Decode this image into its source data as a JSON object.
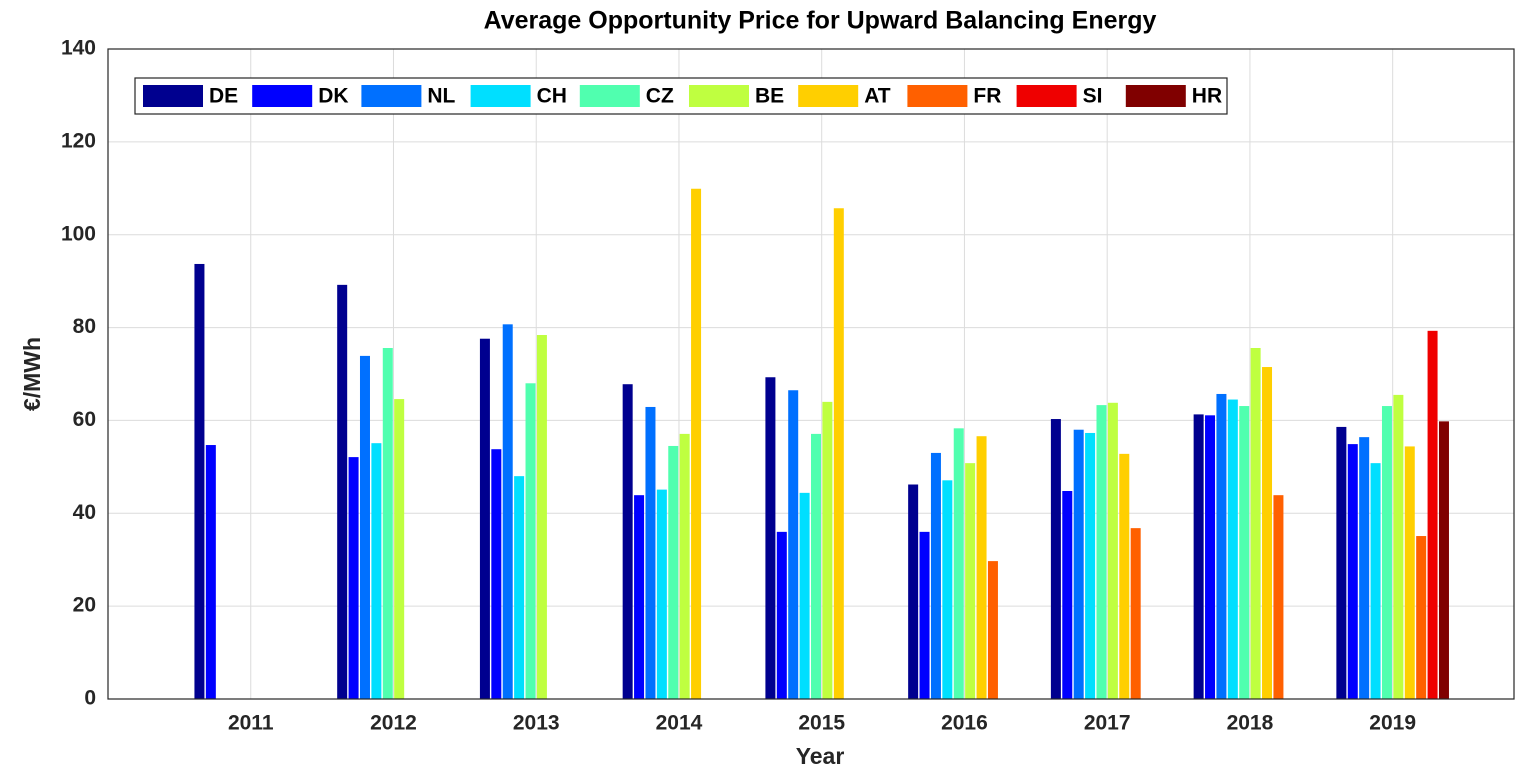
{
  "chart_data": {
    "type": "bar",
    "title": "Average Opportunity Price for Upward Balancing Energy",
    "x_label": "Year",
    "y_label": "€/MWh",
    "categories": [
      "2011",
      "2012",
      "2013",
      "2014",
      "2015",
      "2016",
      "2017",
      "2018",
      "2019"
    ],
    "series": [
      {
        "name": "DE",
        "color": "#00008f",
        "values": [
          93.7,
          89.2,
          77.6,
          67.8,
          69.3,
          46.2,
          60.3,
          61.3,
          58.6
        ]
      },
      {
        "name": "DK",
        "color": "#0000ff",
        "values": [
          54.7,
          52.1,
          53.8,
          43.9,
          36.0,
          36.0,
          44.8,
          61.1,
          54.9
        ]
      },
      {
        "name": "NL",
        "color": "#0070ff",
        "values": [
          null,
          73.9,
          80.7,
          62.9,
          66.5,
          53.0,
          58.0,
          65.7,
          56.4
        ]
      },
      {
        "name": "CH",
        "color": "#00dfff",
        "values": [
          null,
          55.1,
          48.0,
          45.1,
          44.4,
          47.1,
          57.3,
          64.5,
          50.8
        ]
      },
      {
        "name": "CZ",
        "color": "#50ffaf",
        "values": [
          null,
          75.6,
          68.0,
          54.5,
          57.1,
          58.3,
          63.3,
          63.1,
          63.1
        ]
      },
      {
        "name": "BE",
        "color": "#bfff40",
        "values": [
          null,
          64.6,
          78.4,
          57.1,
          64.0,
          50.8,
          63.8,
          75.6,
          65.5
        ]
      },
      {
        "name": "AT",
        "color": "#ffcf00",
        "values": [
          null,
          null,
          null,
          109.9,
          105.7,
          56.6,
          52.8,
          71.5,
          54.4
        ]
      },
      {
        "name": "FR",
        "color": "#ff6000",
        "values": [
          null,
          null,
          null,
          null,
          null,
          29.7,
          36.8,
          43.9,
          35.1
        ]
      },
      {
        "name": "SI",
        "color": "#ef0000",
        "values": [
          null,
          null,
          null,
          null,
          null,
          null,
          null,
          null,
          79.3
        ]
      },
      {
        "name": "HR",
        "color": "#800000",
        "values": [
          null,
          null,
          null,
          null,
          null,
          null,
          null,
          null,
          59.8
        ]
      }
    ],
    "ylim": [
      0,
      140
    ],
    "yticks": [
      0,
      20,
      40,
      60,
      80,
      100,
      120,
      140
    ],
    "grid": true,
    "legend": "top-left"
  }
}
